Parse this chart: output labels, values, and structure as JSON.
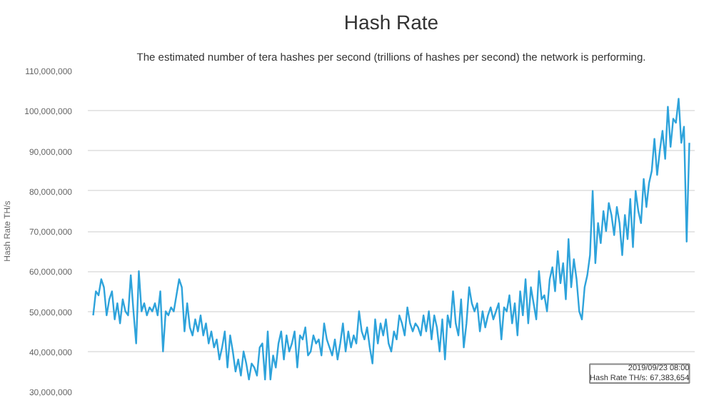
{
  "chart_data": {
    "type": "line",
    "title": "Hash Rate",
    "subtitle": "The estimated number of tera hashes per second (trillions of hashes per second) the network is performing.",
    "ylabel": "Hash Rate TH/s",
    "categories": [
      null,
      null,
      null,
      null,
      null,
      null,
      null,
      null,
      null,
      null,
      null,
      null,
      null,
      null,
      null,
      null,
      null,
      null,
      null,
      null,
      null,
      null,
      null,
      null,
      null,
      null,
      null,
      null,
      null,
      null,
      null,
      null,
      null,
      null,
      null,
      null,
      null,
      null,
      null,
      null,
      null,
      null,
      null,
      null,
      null,
      null,
      null,
      null,
      null,
      null,
      null,
      null,
      null,
      null,
      null,
      null,
      null,
      null,
      null,
      null,
      null,
      null,
      null,
      null,
      null,
      null,
      null,
      null,
      null,
      null,
      null,
      null,
      null,
      null,
      null,
      null,
      null,
      null,
      null,
      null,
      null,
      null,
      null,
      null,
      null,
      null,
      null,
      null,
      null,
      null,
      null,
      null,
      null,
      null,
      null,
      null,
      null,
      null,
      null,
      null,
      null,
      null,
      null,
      null,
      null,
      null,
      null,
      null,
      null,
      null,
      null,
      null,
      null,
      null,
      null,
      null,
      null,
      null,
      null,
      null,
      null,
      null,
      null,
      null,
      null,
      null,
      null,
      null,
      null,
      null,
      null,
      null,
      null,
      null,
      null,
      null,
      null,
      null,
      null,
      null,
      null,
      null,
      null,
      null,
      null,
      null,
      null,
      null,
      null,
      null,
      null,
      null,
      null,
      null,
      null,
      null,
      null,
      null,
      null,
      null,
      null,
      null,
      null,
      null,
      null,
      null,
      null,
      null,
      null,
      null,
      null,
      null,
      null,
      null,
      null,
      null,
      null,
      null,
      null,
      null,
      null,
      null,
      null,
      null,
      null,
      null,
      null,
      null,
      null,
      null,
      null,
      null,
      null,
      null,
      null,
      null,
      null,
      null,
      null,
      null,
      null,
      null,
      null,
      null,
      null,
      null,
      null,
      null,
      null,
      null,
      null,
      null,
      null,
      null,
      null,
      null,
      null,
      null,
      null,
      null,
      null,
      null,
      null
    ],
    "series": [
      {
        "color": "#2ea3db",
        "values": [
          49000000,
          55000000,
          54000000,
          58000000,
          56000000,
          49000000,
          53000000,
          55000000,
          48000000,
          52000000,
          47000000,
          53000000,
          50000000,
          49000000,
          59000000,
          50000000,
          42000000,
          60000000,
          50000000,
          52000000,
          49000000,
          51000000,
          50000000,
          52000000,
          49000000,
          55000000,
          40000000,
          50000000,
          49000000,
          51000000,
          50000000,
          54000000,
          58000000,
          56000000,
          45000000,
          52000000,
          46000000,
          44000000,
          48000000,
          45000000,
          49000000,
          44000000,
          47000000,
          42000000,
          45000000,
          41000000,
          43000000,
          38000000,
          41000000,
          45000000,
          36000000,
          44000000,
          40000000,
          35000000,
          38000000,
          34000000,
          40000000,
          37000000,
          33000000,
          37000000,
          36000000,
          34000000,
          41000000,
          42000000,
          33000000,
          45000000,
          33000000,
          39000000,
          36000000,
          42000000,
          45000000,
          38000000,
          44000000,
          40000000,
          42000000,
          45000000,
          36000000,
          44000000,
          43000000,
          46000000,
          39000000,
          40000000,
          44000000,
          42000000,
          43000000,
          39000000,
          47000000,
          43000000,
          41000000,
          39000000,
          43000000,
          38000000,
          42000000,
          47000000,
          40000000,
          45000000,
          41000000,
          44000000,
          42000000,
          50000000,
          45000000,
          43000000,
          46000000,
          41000000,
          37000000,
          48000000,
          42000000,
          47000000,
          44000000,
          48000000,
          42000000,
          40000000,
          45000000,
          43000000,
          49000000,
          47000000,
          44000000,
          51000000,
          47000000,
          45000000,
          47000000,
          46000000,
          44000000,
          49000000,
          45000000,
          50000000,
          43000000,
          49000000,
          46000000,
          40000000,
          48000000,
          38000000,
          49000000,
          46000000,
          55000000,
          47000000,
          44000000,
          53000000,
          41000000,
          47000000,
          56000000,
          52000000,
          50000000,
          52000000,
          45000000,
          50000000,
          46000000,
          49000000,
          51000000,
          48000000,
          50000000,
          52000000,
          43000000,
          51000000,
          50000000,
          54000000,
          47000000,
          52000000,
          44000000,
          55000000,
          49000000,
          58000000,
          47000000,
          56000000,
          52000000,
          48000000,
          60000000,
          53000000,
          54000000,
          50000000,
          58000000,
          61000000,
          55000000,
          65000000,
          57000000,
          62000000,
          53000000,
          68000000,
          56000000,
          63000000,
          58000000,
          50000000,
          48000000,
          56000000,
          59000000,
          64000000,
          80000000,
          62000000,
          72000000,
          67000000,
          75000000,
          70000000,
          77000000,
          74000000,
          69000000,
          76000000,
          72000000,
          64000000,
          74000000,
          68000000,
          78000000,
          66000000,
          80000000,
          75000000,
          72000000,
          83000000,
          76000000,
          82000000,
          85000000,
          93000000,
          84000000,
          90000000,
          95000000,
          88000000,
          101000000,
          91000000,
          98000000,
          97000000,
          103000000,
          92000000,
          96000000,
          67383654,
          92000000
        ]
      }
    ],
    "ylim": [
      30000000,
      110000000
    ],
    "yticks": [
      {
        "value": 30000000,
        "label": "30,000,000"
      },
      {
        "value": 40000000,
        "label": "40,000,000"
      },
      {
        "value": 50000000,
        "label": "50,000,000"
      },
      {
        "value": 60000000,
        "label": "60,000,000"
      },
      {
        "value": 70000000,
        "label": "70,000,000"
      },
      {
        "value": 80000000,
        "label": "80,000,000"
      },
      {
        "value": 90000000,
        "label": "90,000,000"
      },
      {
        "value": 100000000,
        "label": "100,000,000"
      },
      {
        "value": 110000000,
        "label": "110,000,000"
      }
    ],
    "grid": "y",
    "marker": "none",
    "line_style": "solid",
    "annotations": [
      "2019/09/23 08:00\nHash Rate TH/s: 67,383,654"
    ]
  }
}
